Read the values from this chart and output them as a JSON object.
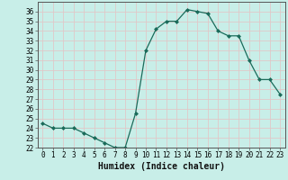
{
  "x": [
    0,
    1,
    2,
    3,
    4,
    5,
    6,
    7,
    8,
    9,
    10,
    11,
    12,
    13,
    14,
    15,
    16,
    17,
    18,
    19,
    20,
    21,
    22,
    23
  ],
  "y": [
    24.5,
    24.0,
    24.0,
    24.0,
    23.5,
    23.0,
    22.5,
    22.0,
    22.0,
    25.5,
    32.0,
    34.2,
    35.0,
    35.0,
    36.2,
    36.0,
    35.8,
    34.0,
    33.5,
    33.5,
    31.0,
    29.0,
    29.0,
    27.5
  ],
  "line_color": "#1a6b5a",
  "marker": "D",
  "marker_size": 2.0,
  "bg_color": "#c8eee8",
  "grid_color": "#e0c8c8",
  "title": "",
  "xlabel": "Humidex (Indice chaleur)",
  "ylabel": "",
  "ylim": [
    22,
    37
  ],
  "xlim": [
    -0.5,
    23.5
  ],
  "yticks": [
    22,
    23,
    24,
    25,
    26,
    27,
    28,
    29,
    30,
    31,
    32,
    33,
    34,
    35,
    36
  ],
  "xticks": [
    0,
    1,
    2,
    3,
    4,
    5,
    6,
    7,
    8,
    9,
    10,
    11,
    12,
    13,
    14,
    15,
    16,
    17,
    18,
    19,
    20,
    21,
    22,
    23
  ],
  "tick_fontsize": 5.5,
  "xlabel_fontsize": 7.0,
  "spine_color": "#555555"
}
